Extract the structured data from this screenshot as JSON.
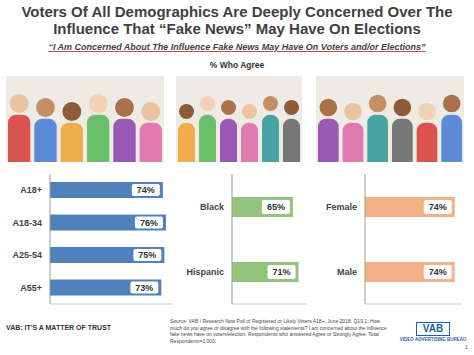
{
  "header": {
    "title": "Voters Of All Demographics Are Deeply Concerned Over The Influence That “Fake News” May Have On Elections",
    "subtitle": "“I Am Concerned About The Influence Fake News May Have On Voters and/or Elections”",
    "measure": "% Who Agree"
  },
  "chart_data": [
    {
      "type": "bar",
      "orientation": "horizontal",
      "categories": [
        "A18+",
        "A18-34",
        "A25-54",
        "A55+"
      ],
      "values": [
        74,
        76,
        75,
        73
      ],
      "value_labels": [
        "74%",
        "76%",
        "75%",
        "73%"
      ],
      "color": "#4f81bd",
      "xlim": [
        0,
        80
      ],
      "xticks": [
        0,
        80
      ],
      "data_labels": true,
      "tick_labels": "y"
    },
    {
      "type": "bar",
      "orientation": "horizontal",
      "categories": [
        "Black",
        "Hispanic"
      ],
      "values": [
        65,
        71
      ],
      "value_labels": [
        "65%",
        "71%"
      ],
      "color": "#93c47d",
      "xlim": [
        0,
        80
      ],
      "xticks": [
        0,
        80
      ],
      "data_labels": true,
      "tick_labels": "y"
    },
    {
      "type": "bar",
      "orientation": "horizontal",
      "categories": [
        "Female",
        "Male"
      ],
      "values": [
        74,
        74
      ],
      "value_labels": [
        "74%",
        "74%"
      ],
      "color": "#f4b183",
      "xlim": [
        0,
        80
      ],
      "xticks": [
        0,
        80
      ],
      "data_labels": true,
      "tick_labels": "y"
    }
  ],
  "footer": {
    "tagline": "VAB: IT'S A MATTER OF TRUST",
    "source": "Source: VAB / Research Now Poll of Registered or Likely Voters A18+; June 2018. Q19.1: How much do you agree or disagree with the following statements? I am concerned about the influence fake news have on voters/election. Respondents who answered Agree or Strongly Agree. Total Respondents=1,003.",
    "logo": {
      "name": "VAB",
      "full_name": "VIDEO ADVERTISING BUREAU"
    },
    "page": 1
  }
}
